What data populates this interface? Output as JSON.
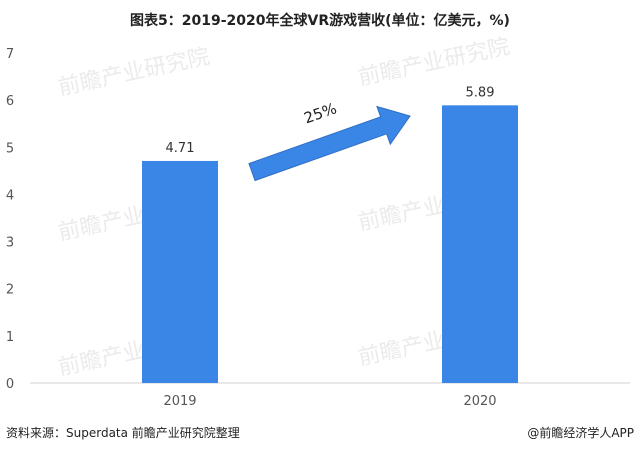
{
  "page": {
    "source": "资料来源：Superdata 前瞻产业研究院整理",
    "credit": "@前瞻经济学人APP",
    "watermark_text": "前瞻产业研究院"
  },
  "chart_data": {
    "type": "bar",
    "title": "图表5：2019-2020年全球VR游戏营收(单位：亿美元，%)",
    "categories": [
      "2019",
      "2020"
    ],
    "values": [
      4.71,
      5.89
    ],
    "data_labels": [
      "4.71",
      "5.89"
    ],
    "ylim": [
      0,
      7
    ],
    "yticks": [
      "0",
      "1",
      "2",
      "3",
      "4",
      "5",
      "6",
      "7"
    ],
    "grid": false,
    "legend": "none",
    "bar_color": "#3a86e6",
    "arrow_color": "#3a86e6",
    "annotation": "25%"
  }
}
